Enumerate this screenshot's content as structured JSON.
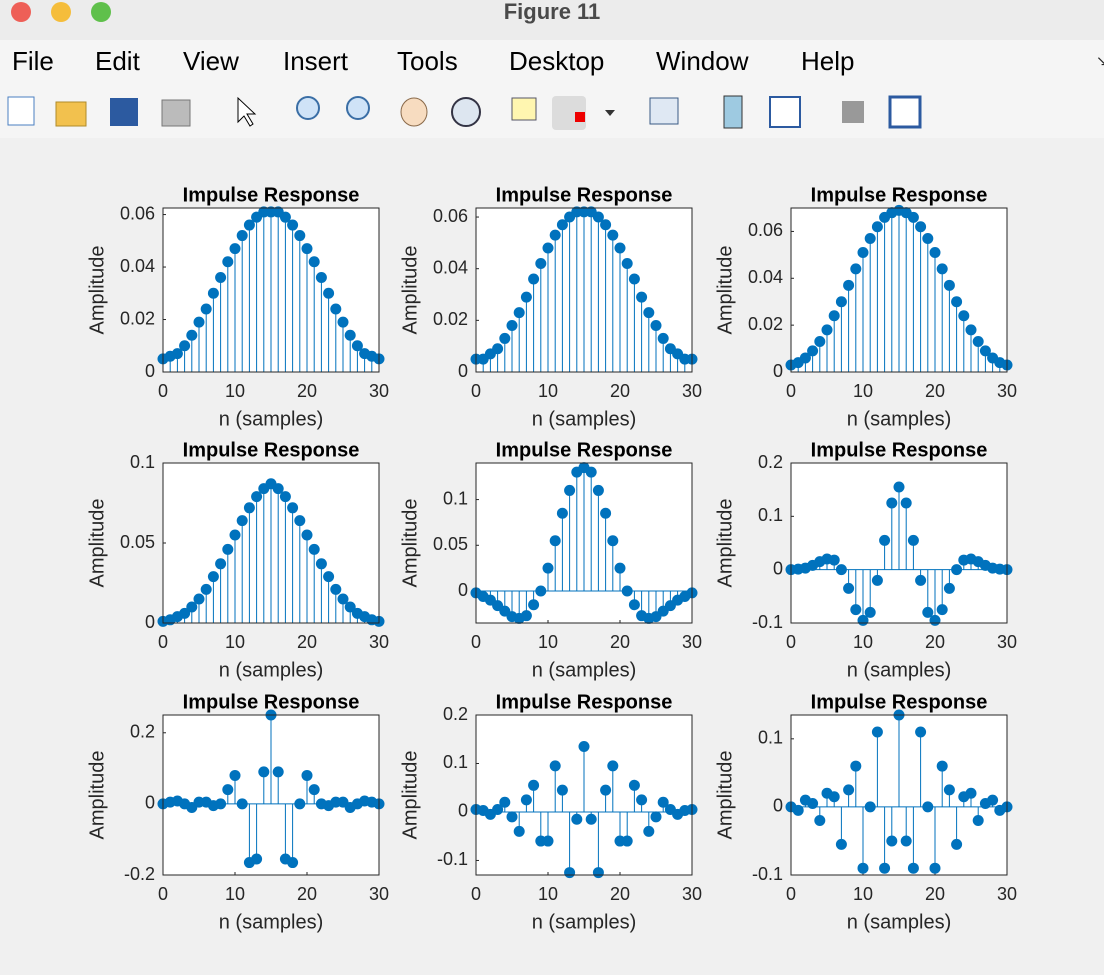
{
  "window": {
    "title": "Figure 11",
    "menu": [
      "File",
      "Edit",
      "View",
      "Insert",
      "Tools",
      "Desktop",
      "Window",
      "Help"
    ]
  },
  "chart_data": [
    {
      "type": "stem",
      "title": "Impulse Response",
      "xlabel": "n (samples)",
      "ylabel": "Amplitude",
      "color": "#0072bd",
      "x": [
        0,
        1,
        2,
        3,
        4,
        5,
        6,
        7,
        8,
        9,
        10,
        11,
        12,
        13,
        14,
        15,
        16,
        17,
        18,
        19,
        20,
        21,
        22,
        23,
        24,
        25,
        26,
        27,
        28,
        29,
        30
      ],
      "values": [
        0.005,
        0.006,
        0.007,
        0.01,
        0.014,
        0.019,
        0.024,
        0.03,
        0.036,
        0.042,
        0.047,
        0.052,
        0.056,
        0.059,
        0.061,
        0.061,
        0.061,
        0.059,
        0.056,
        0.052,
        0.047,
        0.042,
        0.036,
        0.03,
        0.024,
        0.019,
        0.014,
        0.01,
        0.007,
        0.006,
        0.005
      ],
      "xlim": [
        0,
        30
      ],
      "xticks": [
        0,
        10,
        20,
        30
      ],
      "ylim": [
        0,
        0.0625
      ],
      "yticks": [
        0,
        0.02,
        0.04,
        0.06
      ]
    },
    {
      "type": "stem",
      "title": "Impulse Response",
      "xlabel": "n (samples)",
      "ylabel": "Amplitude",
      "color": "#0072bd",
      "x": [
        0,
        1,
        2,
        3,
        4,
        5,
        6,
        7,
        8,
        9,
        10,
        11,
        12,
        13,
        14,
        15,
        16,
        17,
        18,
        19,
        20,
        21,
        22,
        23,
        24,
        25,
        26,
        27,
        28,
        29,
        30
      ],
      "values": [
        0.005,
        0.005,
        0.007,
        0.009,
        0.013,
        0.018,
        0.023,
        0.029,
        0.036,
        0.042,
        0.048,
        0.053,
        0.057,
        0.06,
        0.062,
        0.062,
        0.062,
        0.06,
        0.057,
        0.053,
        0.048,
        0.042,
        0.036,
        0.029,
        0.023,
        0.018,
        0.013,
        0.009,
        0.007,
        0.005,
        0.005
      ],
      "xlim": [
        0,
        30
      ],
      "xticks": [
        0,
        10,
        20,
        30
      ],
      "ylim": [
        0,
        0.0635
      ],
      "yticks": [
        0,
        0.02,
        0.04,
        0.06
      ]
    },
    {
      "type": "stem",
      "title": "Impulse Response",
      "xlabel": "n (samples)",
      "ylabel": "Amplitude",
      "color": "#0072bd",
      "x": [
        0,
        1,
        2,
        3,
        4,
        5,
        6,
        7,
        8,
        9,
        10,
        11,
        12,
        13,
        14,
        15,
        16,
        17,
        18,
        19,
        20,
        21,
        22,
        23,
        24,
        25,
        26,
        27,
        28,
        29,
        30
      ],
      "values": [
        0.003,
        0.004,
        0.006,
        0.009,
        0.013,
        0.018,
        0.024,
        0.03,
        0.037,
        0.044,
        0.051,
        0.057,
        0.062,
        0.066,
        0.068,
        0.069,
        0.068,
        0.066,
        0.062,
        0.057,
        0.051,
        0.044,
        0.037,
        0.03,
        0.024,
        0.018,
        0.013,
        0.009,
        0.006,
        0.004,
        0.003
      ],
      "xlim": [
        0,
        30
      ],
      "xticks": [
        0,
        10,
        20,
        30
      ],
      "ylim": [
        0,
        0.07
      ],
      "yticks": [
        0,
        0.02,
        0.04,
        0.06
      ]
    },
    {
      "type": "stem",
      "title": "Impulse Response",
      "xlabel": "n (samples)",
      "ylabel": "Amplitude",
      "color": "#0072bd",
      "x": [
        0,
        1,
        2,
        3,
        4,
        5,
        6,
        7,
        8,
        9,
        10,
        11,
        12,
        13,
        14,
        15,
        16,
        17,
        18,
        19,
        20,
        21,
        22,
        23,
        24,
        25,
        26,
        27,
        28,
        29,
        30
      ],
      "values": [
        0.001,
        0.002,
        0.004,
        0.006,
        0.01,
        0.015,
        0.021,
        0.029,
        0.037,
        0.046,
        0.055,
        0.064,
        0.072,
        0.079,
        0.084,
        0.087,
        0.084,
        0.079,
        0.072,
        0.064,
        0.055,
        0.046,
        0.037,
        0.029,
        0.021,
        0.015,
        0.01,
        0.006,
        0.004,
        0.002,
        0.001
      ],
      "xlim": [
        0,
        30
      ],
      "xticks": [
        0,
        10,
        20,
        30
      ],
      "ylim": [
        0,
        0.1
      ],
      "yticks": [
        0,
        0.05,
        0.1
      ]
    },
    {
      "type": "stem",
      "title": "Impulse Response",
      "xlabel": "n (samples)",
      "ylabel": "Amplitude",
      "color": "#0072bd",
      "x": [
        0,
        1,
        2,
        3,
        4,
        5,
        6,
        7,
        8,
        9,
        10,
        11,
        12,
        13,
        14,
        15,
        16,
        17,
        18,
        19,
        20,
        21,
        22,
        23,
        24,
        25,
        26,
        27,
        28,
        29,
        30
      ],
      "values": [
        -0.002,
        -0.006,
        -0.01,
        -0.016,
        -0.022,
        -0.028,
        -0.03,
        -0.027,
        -0.015,
        0,
        0.025,
        0.055,
        0.085,
        0.11,
        0.13,
        0.135,
        0.13,
        0.11,
        0.085,
        0.055,
        0.025,
        0,
        -0.015,
        -0.027,
        -0.03,
        -0.028,
        -0.022,
        -0.016,
        -0.01,
        -0.006,
        -0.002
      ],
      "xlim": [
        0,
        30
      ],
      "xticks": [
        0,
        10,
        20,
        30
      ],
      "ylim": [
        -0.035,
        0.14
      ],
      "yticks": [
        0,
        0.05,
        0.1
      ]
    },
    {
      "type": "stem",
      "title": "Impulse Response",
      "xlabel": "n (samples)",
      "ylabel": "Amplitude",
      "color": "#0072bd",
      "x": [
        0,
        1,
        2,
        3,
        4,
        5,
        6,
        7,
        8,
        9,
        10,
        11,
        12,
        13,
        14,
        15,
        16,
        17,
        18,
        19,
        20,
        21,
        22,
        23,
        24,
        25,
        26,
        27,
        28,
        29,
        30
      ],
      "values": [
        0,
        0.001,
        0.003,
        0.008,
        0.015,
        0.02,
        0.018,
        0,
        -0.035,
        -0.075,
        -0.095,
        -0.08,
        -0.02,
        0.055,
        0.125,
        0.155,
        0.125,
        0.055,
        -0.02,
        -0.08,
        -0.095,
        -0.075,
        -0.035,
        0,
        0.018,
        0.02,
        0.015,
        0.008,
        0.003,
        0.001,
        0
      ],
      "xlim": [
        0,
        30
      ],
      "xticks": [
        0,
        10,
        20,
        30
      ],
      "ylim": [
        -0.1,
        0.2
      ],
      "yticks": [
        -0.1,
        0,
        0.1,
        0.2
      ]
    },
    {
      "type": "stem",
      "title": "Impulse Response",
      "xlabel": "n (samples)",
      "ylabel": "Amplitude",
      "color": "#0072bd",
      "x": [
        0,
        1,
        2,
        3,
        4,
        5,
        6,
        7,
        8,
        9,
        10,
        11,
        12,
        13,
        14,
        15,
        16,
        17,
        18,
        19,
        20,
        21,
        22,
        23,
        24,
        25,
        26,
        27,
        28,
        29,
        30
      ],
      "values": [
        0,
        0.005,
        0.008,
        0,
        -0.01,
        0.005,
        0.005,
        -0.005,
        0,
        0.04,
        0.08,
        0,
        -0.165,
        -0.155,
        0.09,
        0.25,
        0.09,
        -0.155,
        -0.165,
        0,
        0.08,
        0.04,
        0,
        -0.005,
        0.005,
        0.005,
        -0.01,
        0,
        0.008,
        0.005,
        0
      ],
      "xlim": [
        0,
        30
      ],
      "xticks": [
        0,
        10,
        20,
        30
      ],
      "ylim": [
        -0.2,
        0.25
      ],
      "yticks": [
        -0.2,
        0,
        0.2
      ]
    },
    {
      "type": "stem",
      "title": "Impulse Response",
      "xlabel": "n (samples)",
      "ylabel": "Amplitude",
      "color": "#0072bd",
      "x": [
        0,
        1,
        2,
        3,
        4,
        5,
        6,
        7,
        8,
        9,
        10,
        11,
        12,
        13,
        14,
        15,
        16,
        17,
        18,
        19,
        20,
        21,
        22,
        23,
        24,
        25,
        26,
        27,
        28,
        29,
        30
      ],
      "values": [
        0.005,
        0.003,
        -0.005,
        0.005,
        0.02,
        -0.01,
        -0.04,
        0.025,
        0.055,
        -0.06,
        -0.06,
        0.095,
        0.045,
        -0.125,
        -0.015,
        0.135,
        -0.015,
        -0.125,
        0.045,
        0.095,
        -0.06,
        -0.06,
        0.055,
        0.025,
        -0.04,
        -0.01,
        0.02,
        0.005,
        -0.005,
        0.003,
        0.005
      ],
      "xlim": [
        0,
        30
      ],
      "xticks": [
        0,
        10,
        20,
        30
      ],
      "ylim": [
        -0.13,
        0.2
      ],
      "yticks": [
        -0.1,
        0,
        0.1,
        0.2
      ]
    },
    {
      "type": "stem",
      "title": "Impulse Response",
      "xlabel": "n (samples)",
      "ylabel": "Amplitude",
      "color": "#0072bd",
      "x": [
        0,
        1,
        2,
        3,
        4,
        5,
        6,
        7,
        8,
        9,
        10,
        11,
        12,
        13,
        14,
        15,
        16,
        17,
        18,
        19,
        20,
        21,
        22,
        23,
        24,
        25,
        26,
        27,
        28,
        29,
        30
      ],
      "values": [
        0,
        -0.005,
        0.01,
        0.005,
        -0.02,
        0.02,
        0.015,
        -0.055,
        0.025,
        0.06,
        -0.09,
        0,
        0.11,
        -0.09,
        -0.05,
        0.135,
        -0.05,
        -0.09,
        0.11,
        0,
        -0.09,
        0.06,
        0.025,
        -0.055,
        0.015,
        0.02,
        -0.02,
        0.005,
        0.01,
        -0.005,
        0
      ],
      "xlim": [
        0,
        30
      ],
      "xticks": [
        0,
        10,
        20,
        30
      ],
      "ylim": [
        -0.1,
        0.135
      ],
      "yticks": [
        -0.1,
        0,
        0.1
      ]
    }
  ]
}
